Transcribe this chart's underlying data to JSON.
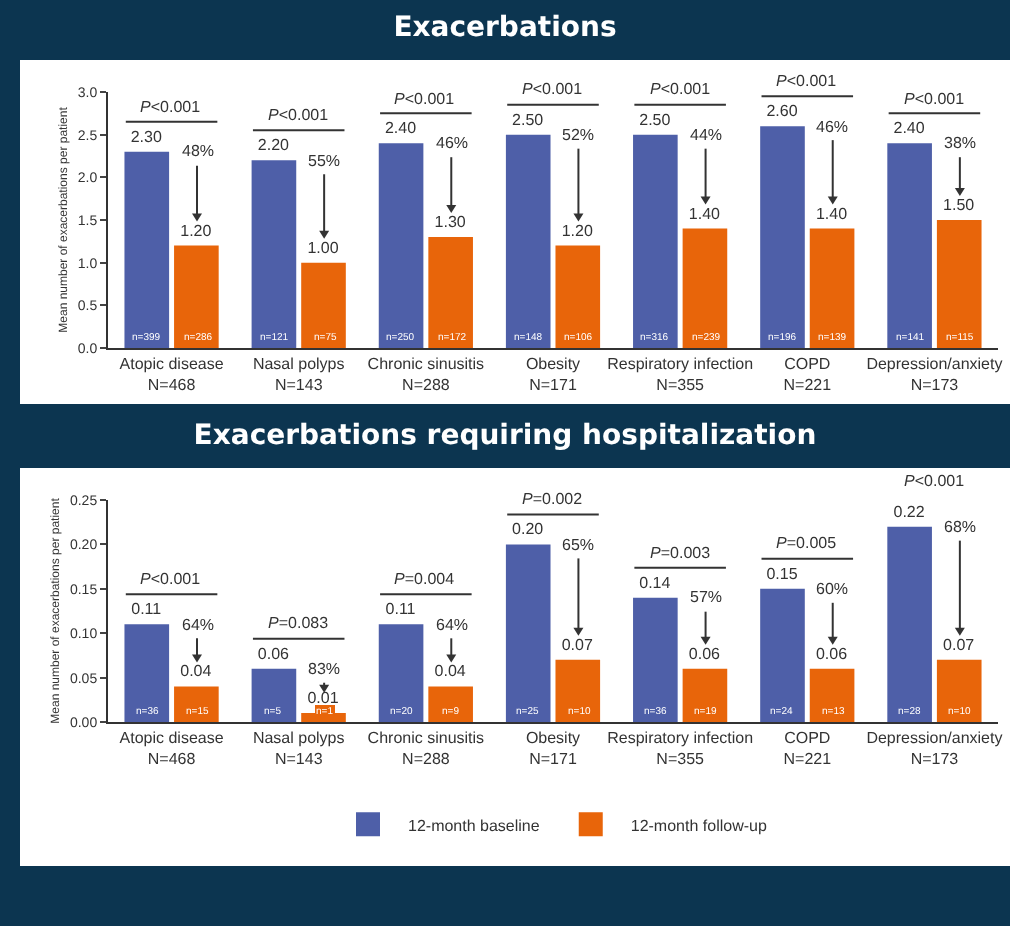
{
  "chart_data": [
    {
      "type": "bar",
      "title": "Exacerbations",
      "ylabel": "Mean number of exacerbations per patient",
      "categories": [
        "Atopic disease\nN=468",
        "Nasal polyps\nN=143",
        "Chronic sinusitis\nN=288",
        "Obesity\nN=171",
        "Respiratory infection\nN=355",
        "COPD\nN=221",
        "Depression/anxiety\nN=173"
      ],
      "series": [
        {
          "color": "#4e5fa8",
          "values": [
            2.3,
            2.2,
            2.4,
            2.5,
            2.5,
            2.6,
            2.4
          ],
          "value_labels": [
            "2.30",
            "2.20",
            "2.40",
            "2.50",
            "2.50",
            "2.60",
            "2.40"
          ]
        },
        {
          "color": "#e8650a",
          "values": [
            1.2,
            1.0,
            1.3,
            1.2,
            1.4,
            1.4,
            1.5
          ],
          "value_labels": [
            "1.20",
            "1.00",
            "1.30",
            "1.20",
            "1.40",
            "1.40",
            "1.50"
          ]
        }
      ],
      "ylim": [
        0,
        3.0
      ],
      "yticks": [
        {
          "value": 0,
          "label": "0.0"
        },
        {
          "value": 0.5,
          "label": "0.5"
        },
        {
          "value": 1,
          "label": "1.0"
        },
        {
          "value": 1.5,
          "label": "1.5"
        },
        {
          "value": 2,
          "label": "2.0"
        },
        {
          "value": 2.5,
          "label": "2.5"
        },
        {
          "value": 3,
          "label": "3.0"
        }
      ],
      "grid": false,
      "legend": false,
      "annotations": [
        "P<0.001",
        "P<0.001",
        "P<0.001",
        "P<0.001",
        "P<0.001",
        "P<0.001",
        "P<0.001",
        "48%",
        "55%",
        "46%",
        "52%",
        "44%",
        "46%",
        "38%",
        "n=399",
        "n=286",
        "n=121",
        "n=75",
        "n=250",
        "n=172",
        "n=148",
        "n=106",
        "n=316",
        "n=239",
        "n=196",
        "n=139",
        "n=141",
        "n=115"
      ]
    },
    {
      "type": "bar",
      "title": "Exacerbations requiring hospitalization",
      "ylabel": "Mean number of exacerbations per patient",
      "categories": [
        "Atopic disease\nN=468",
        "Nasal polyps\nN=143",
        "Chronic sinusitis\nN=288",
        "Obesity\nN=171",
        "Respiratory infection\nN=355",
        "COPD\nN=221",
        "Depression/anxiety\nN=173"
      ],
      "series": [
        {
          "name": "12-month baseline",
          "color": "#4e5fa8",
          "values": [
            0.11,
            0.06,
            0.11,
            0.2,
            0.14,
            0.15,
            0.22
          ],
          "value_labels": [
            "0.11",
            "0.06",
            "0.11",
            "0.20",
            "0.14",
            "0.15",
            "0.22"
          ]
        },
        {
          "name": "12-month follow-up",
          "color": "#e8650a",
          "values": [
            0.04,
            0.01,
            0.04,
            0.07,
            0.06,
            0.06,
            0.07
          ],
          "value_labels": [
            "0.04",
            "0.01",
            "0.04",
            "0.07",
            "0.06",
            "0.06",
            "0.07"
          ]
        }
      ],
      "ylim": [
        0,
        0.25
      ],
      "yticks": [
        {
          "value": 0,
          "label": "0.00"
        },
        {
          "value": 0.05,
          "label": "0.05"
        },
        {
          "value": 0.1,
          "label": "0.10"
        },
        {
          "value": 0.15,
          "label": "0.15"
        },
        {
          "value": 0.2,
          "label": "0.20"
        },
        {
          "value": 0.25,
          "label": "0.25"
        }
      ],
      "grid": false,
      "legend": "bottom",
      "annotations": [
        "P<0.001",
        "P=0.083",
        "P=0.004",
        "P=0.002",
        "P=0.003",
        "P=0.005",
        "P<0.001",
        "64%",
        "83%",
        "64%",
        "65%",
        "57%",
        "60%",
        "68%",
        "n=36",
        "n=15",
        "n=5",
        "n=1",
        "n=20",
        "n=9",
        "n=25",
        "n=10",
        "n=36",
        "n=19",
        "n=24",
        "n=13",
        "n=28",
        "n=10"
      ]
    }
  ]
}
